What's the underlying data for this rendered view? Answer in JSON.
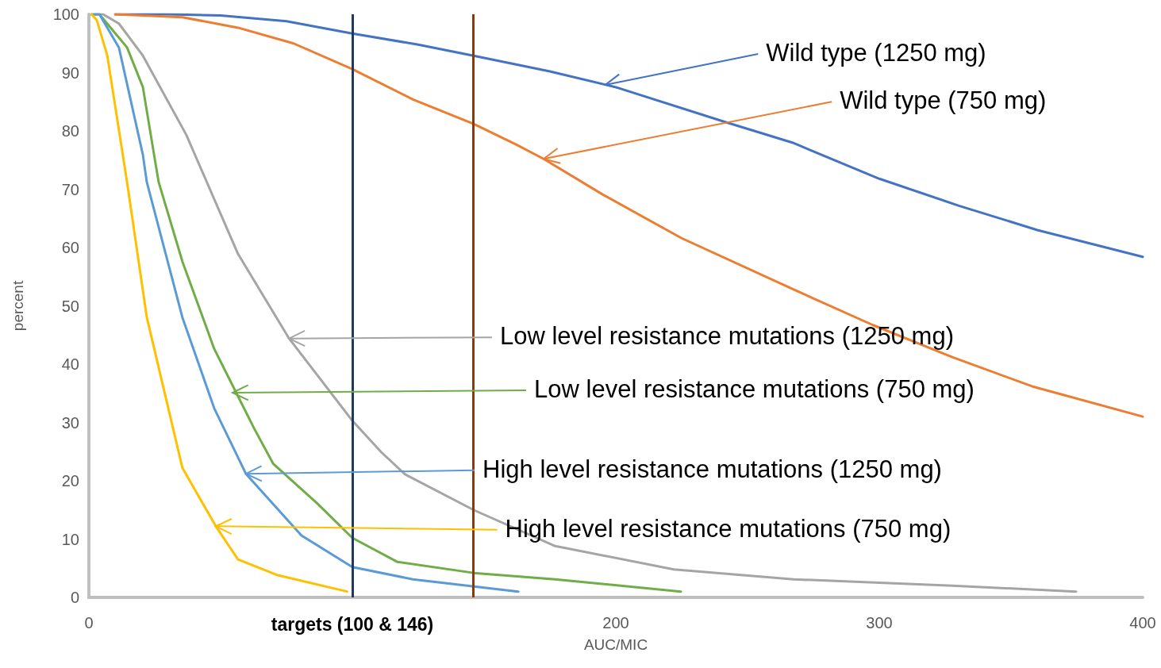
{
  "chart_data": {
    "type": "line",
    "xlabel": "AUC/MIC",
    "ylabel": "percent",
    "xlim": [
      0,
      400
    ],
    "xticks": [
      0,
      {
        "value": 100,
        "label": "targets (100 & 146)"
      },
      200,
      300,
      400
    ],
    "ylim": [
      0,
      100
    ],
    "yticks": [
      0,
      10,
      20,
      30,
      40,
      50,
      60,
      70,
      80,
      90,
      100
    ],
    "grid": false,
    "marker": "none",
    "line_style": "solid",
    "series": [
      {
        "color": "#4472c4",
        "x": [
          10,
          30,
          50,
          75,
          100,
          125,
          146,
          175,
          200,
          241,
          267,
          300,
          330,
          360,
          400
        ],
        "values": [
          100,
          100,
          99.8,
          98.8,
          96.7,
          94.8,
          92.9,
          90.2,
          87.5,
          81.6,
          78,
          71.8,
          67.2,
          63,
          58.4
        ]
      },
      {
        "color": "#ed7d31",
        "x": [
          10,
          35.5,
          56.6,
          77.7,
          100,
          123,
          146,
          162,
          172.6,
          195,
          225,
          267.5,
          297.6,
          327.7,
          358,
          400
        ],
        "values": [
          100,
          99.5,
          97.7,
          95,
          90.6,
          85.4,
          81.2,
          77.7,
          75.2,
          69.1,
          61.6,
          52.8,
          46.7,
          41.2,
          36.2,
          31
        ]
      },
      {
        "color": "#a5a5a5",
        "x": [
          2.4,
          5.4,
          11.4,
          20.5,
          37,
          56.6,
          76,
          100,
          111,
          120,
          146,
          177,
          222,
          267.5,
          327.7,
          374.7
        ],
        "values": [
          100,
          100,
          98.4,
          92.9,
          79.3,
          58.9,
          44.4,
          30.3,
          24.9,
          21.1,
          15,
          8.8,
          4.8,
          3.1,
          2,
          1
        ]
      },
      {
        "color": "#70ad47",
        "x": [
          1,
          4,
          14.5,
          20.5,
          25,
          26.5,
          35.5,
          47.6,
          62.7,
          70,
          86.7,
          100,
          117,
          146,
          177,
          224.7
        ],
        "values": [
          100,
          100,
          94.3,
          87.5,
          75.2,
          71.2,
          57.6,
          42.6,
          29,
          22.9,
          16.1,
          10.2,
          6.1,
          4.2,
          3.1,
          1
        ]
      },
      {
        "color": "#5b9bd5",
        "x": [
          1,
          4,
          11.4,
          20.5,
          22,
          35.5,
          47.6,
          59.6,
          80.7,
          100,
          123,
          163
        ],
        "values": [
          100,
          100,
          94.3,
          75.9,
          71.2,
          48,
          32.4,
          21.2,
          10.6,
          5.2,
          3.1,
          1
        ]
      },
      {
        "color": "#ffc000",
        "x": [
          1,
          3,
          7,
          14.5,
          22,
          35.5,
          48.2,
          56.6,
          71.7,
          98
        ],
        "values": [
          100,
          99,
          92.9,
          71.2,
          48,
          22.2,
          12.2,
          6.5,
          3.8,
          1
        ]
      }
    ],
    "ref_lines": [
      {
        "axis": "x",
        "value": 100,
        "color": "#203864"
      },
      {
        "axis": "x",
        "value": 146,
        "color": "#843c0c"
      }
    ],
    "annotations": [
      {
        "text": "Wild type (1250 mg)",
        "x": 196,
        "y": 87.9
      },
      {
        "text": "Wild type (750 mg)",
        "x": 172.6,
        "y": 75.2
      },
      {
        "text": "Low level resistance mutations (1250 mg)",
        "x": 76,
        "y": 44.4
      },
      {
        "text": "Low level resistance mutations (750 mg)",
        "x": 54.5,
        "y": 35.1
      },
      {
        "text": "High level resistance mutations (1250 mg)",
        "x": 59.6,
        "y": 21.2
      },
      {
        "text": "High level resistance mutations (750 mg)",
        "x": 48.2,
        "y": 12.2
      }
    ]
  }
}
